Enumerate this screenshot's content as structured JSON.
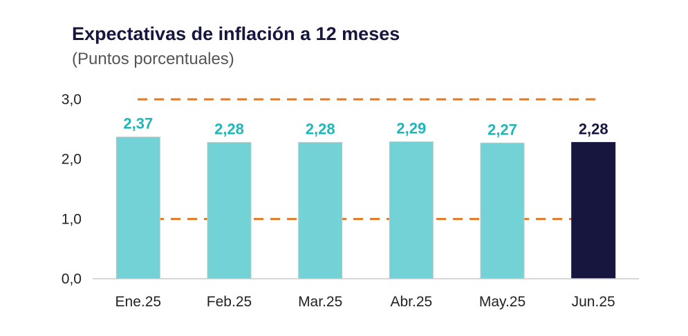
{
  "chart_data": {
    "type": "bar",
    "title": "Expectativas de inflación a 12 meses",
    "subtitle": "(Puntos porcentuales)",
    "categories": [
      "Ene.25",
      "Feb.25",
      "Mar.25",
      "Abr.25",
      "May.25",
      "Jun.25"
    ],
    "values": [
      2.37,
      2.28,
      2.28,
      2.29,
      2.27,
      2.28
    ],
    "data_labels": [
      "2,37",
      "2,28",
      "2,28",
      "2,29",
      "2,27",
      "2,28"
    ],
    "ylim": [
      0,
      3
    ],
    "yticks": [
      0,
      1,
      2,
      3
    ],
    "ytick_labels": [
      "0,0",
      "1,0",
      "2,0",
      "3,0"
    ],
    "reference_lines": [
      1.0,
      3.0
    ],
    "grid": false,
    "colors": {
      "bar": "#72d2d5",
      "bar_highlight": "#16163f",
      "label": "#1cb8b8",
      "label_highlight": "#16163f",
      "reference_line": "#e37722",
      "axis": "#c8c8c8"
    },
    "highlight_index": 5
  }
}
